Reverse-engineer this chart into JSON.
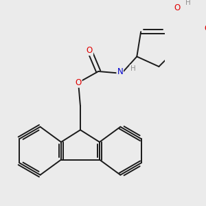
{
  "bg_color": "#ebebeb",
  "atom_colors": {
    "O": "#e00000",
    "N": "#0000cc",
    "C": "#000000",
    "H_gray": "#909090"
  },
  "bond_color": "#1a1a1a",
  "bond_width": 1.4,
  "dbo": 0.055,
  "figsize": [
    3.0,
    3.0
  ],
  "dpi": 100
}
